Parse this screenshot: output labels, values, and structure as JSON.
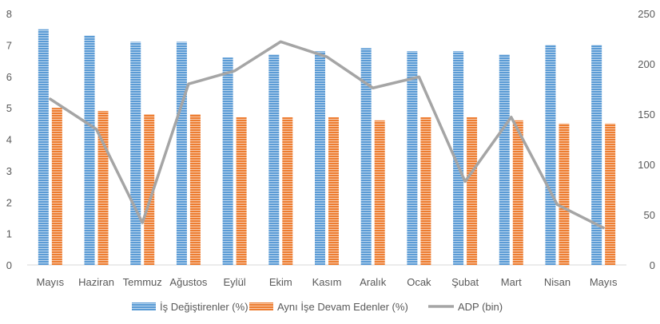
{
  "chart_data": {
    "type": "bar",
    "categories": [
      "Mayıs",
      "Haziran",
      "Temmuz",
      "Ağustos",
      "Eylül",
      "Ekim",
      "Kasım",
      "Aralık",
      "Ocak",
      "Şubat",
      "Mart",
      "Nisan",
      "Mayıs"
    ],
    "series": [
      {
        "name": "İş Değiştirenler (%)",
        "type": "bar",
        "axis": "left",
        "color": "#5B9BD5",
        "values": [
          7.5,
          7.3,
          7.1,
          7.1,
          6.6,
          6.7,
          6.8,
          6.9,
          6.8,
          6.8,
          6.7,
          7.0,
          7.0
        ]
      },
      {
        "name": "Aynı İşe Devam Edenler (%)",
        "type": "bar",
        "axis": "left",
        "color": "#ED7D31",
        "values": [
          5.0,
          4.9,
          4.8,
          4.8,
          4.7,
          4.7,
          4.7,
          4.6,
          4.7,
          4.7,
          4.6,
          4.5,
          4.5
        ]
      },
      {
        "name": "ADP (bin)",
        "type": "line",
        "axis": "right",
        "color": "#A5A5A5",
        "values": [
          165,
          135,
          42,
          180,
          193,
          222,
          207,
          176,
          187,
          83,
          147,
          60,
          37
        ]
      }
    ],
    "y_left": {
      "min": 0,
      "max": 8,
      "ticks": [
        0,
        1,
        2,
        3,
        4,
        5,
        6,
        7,
        8
      ]
    },
    "y_right": {
      "min": 0,
      "max": 250,
      "ticks": [
        0,
        50,
        100,
        150,
        200,
        250
      ]
    },
    "grid": false,
    "legend": "bottom"
  }
}
